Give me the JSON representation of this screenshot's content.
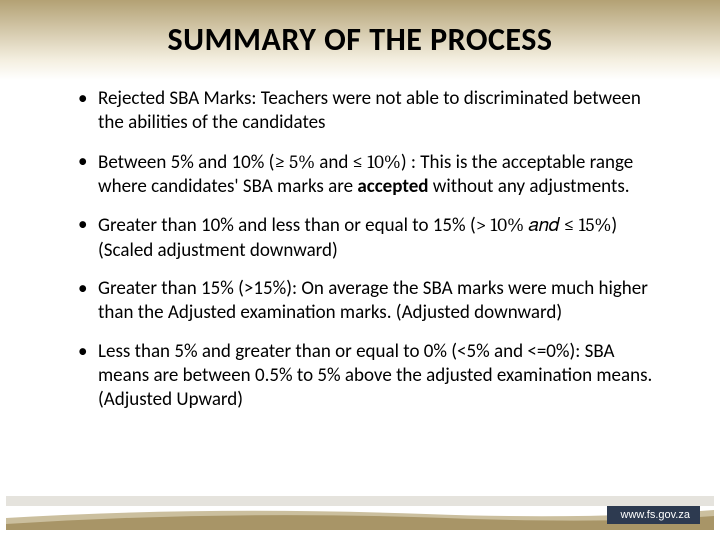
{
  "slide": {
    "title": "SUMMARY OF THE PROCESS",
    "title_fontsize": 32,
    "title_color": "#000000",
    "body_fontsize": 19,
    "body_color": "#000000",
    "top_band_gradient": {
      "from": "#b3a174",
      "mid": "#f4efe0",
      "to": "#ffffff"
    },
    "bullets": [
      {
        "parts": [
          {
            "text": "Rejected SBA Marks: Teachers were not able to discriminated between the abilities of the candidates"
          }
        ]
      },
      {
        "parts": [
          {
            "text": "Between 5% and 10% ("
          },
          {
            "text": "≥ 5% ",
            "math": true
          },
          {
            "text": "and"
          },
          {
            "text": " ≤ 10%",
            "math": true
          },
          {
            "text": ") : This is the acceptable range where candidates' SBA marks are "
          },
          {
            "text": "accepted",
            "bold": true
          },
          {
            "text": " without any adjustments."
          }
        ]
      },
      {
        "parts": [
          {
            "text": "Greater than 10% and less than or equal to 15% ("
          },
          {
            "text": "> 10% 𝑎𝑛𝑑  ≤ 15%",
            "math": true
          },
          {
            "text": ")(Scaled adjustment  downward)"
          }
        ]
      },
      {
        "parts": [
          {
            "text": "Greater than 15% (>15%): On average the SBA marks were much higher than the Adjusted examination marks. (Adjusted downward)"
          }
        ]
      },
      {
        "parts": [
          {
            "text": "Less than 5% and greater than or equal to 0% (<5% and <=0%): SBA means are between 0.5% to 5% above the adjusted examination means.(Adjusted Upward)"
          }
        ]
      }
    ]
  },
  "footer": {
    "url_text": "www.fs.gov.za",
    "url_bg": "#2d3a50",
    "url_color": "#ffffff",
    "gray_bar_color": "#e5e3dd",
    "swoosh_front": "#a89567",
    "swoosh_back": "#cbbf9e"
  }
}
